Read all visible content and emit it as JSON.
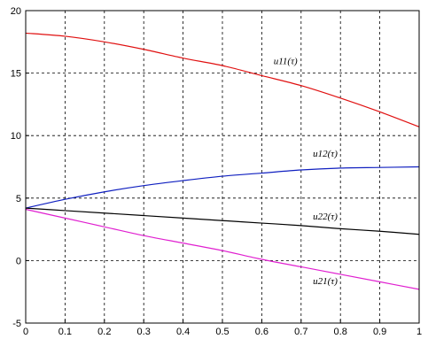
{
  "chart_data": {
    "type": "line",
    "title": "",
    "xlabel": "",
    "ylabel": "",
    "xlim": [
      0,
      1
    ],
    "ylim": [
      -5,
      20
    ],
    "xticks": [
      0,
      0.1,
      0.2,
      0.3,
      0.4,
      0.5,
      0.6,
      0.7,
      0.8,
      0.9,
      1
    ],
    "xtick_labels": [
      "0",
      "0.1",
      "0.2",
      "0.3",
      "0.4",
      "0.5",
      "0.6",
      "0.7",
      "0.8",
      "0.9",
      "1"
    ],
    "yticks": [
      -5,
      0,
      5,
      10,
      15,
      20
    ],
    "ytick_labels": [
      "-5",
      "0",
      "5",
      "10",
      "15",
      "20"
    ],
    "grid": true,
    "legend": "none",
    "series": [
      {
        "label": "u11(τ)",
        "color": "#e01010",
        "x": [
          0,
          0.1,
          0.2,
          0.3,
          0.4,
          0.5,
          0.6,
          0.7,
          0.8,
          0.9,
          1
        ],
        "y": [
          18.2,
          17.95,
          17.5,
          16.9,
          16.2,
          15.6,
          14.8,
          14.0,
          13.0,
          11.9,
          10.7
        ],
        "label_at": [
          0.63,
          15.7
        ]
      },
      {
        "label": "u12(τ)",
        "color": "#1020c0",
        "x": [
          0,
          0.1,
          0.2,
          0.3,
          0.4,
          0.5,
          0.6,
          0.7,
          0.8,
          0.9,
          1
        ],
        "y": [
          4.2,
          4.9,
          5.5,
          6.0,
          6.4,
          6.75,
          7.0,
          7.25,
          7.4,
          7.45,
          7.5
        ],
        "label_at": [
          0.73,
          8.3
        ]
      },
      {
        "label": "u22(τ)",
        "color": "#000000",
        "x": [
          0,
          0.1,
          0.2,
          0.3,
          0.4,
          0.5,
          0.6,
          0.7,
          0.8,
          0.9,
          1
        ],
        "y": [
          4.2,
          4.0,
          3.8,
          3.6,
          3.4,
          3.2,
          3.0,
          2.8,
          2.55,
          2.35,
          2.1
        ],
        "label_at": [
          0.73,
          3.3
        ]
      },
      {
        "label": "u21(τ)",
        "color": "#e020d0",
        "x": [
          0,
          0.1,
          0.2,
          0.3,
          0.4,
          0.5,
          0.6,
          0.7,
          0.8,
          0.9,
          1
        ],
        "y": [
          4.1,
          3.4,
          2.7,
          2.0,
          1.4,
          0.8,
          0.1,
          -0.5,
          -1.1,
          -1.7,
          -2.3
        ],
        "label_at": [
          0.73,
          -1.9
        ]
      }
    ]
  }
}
